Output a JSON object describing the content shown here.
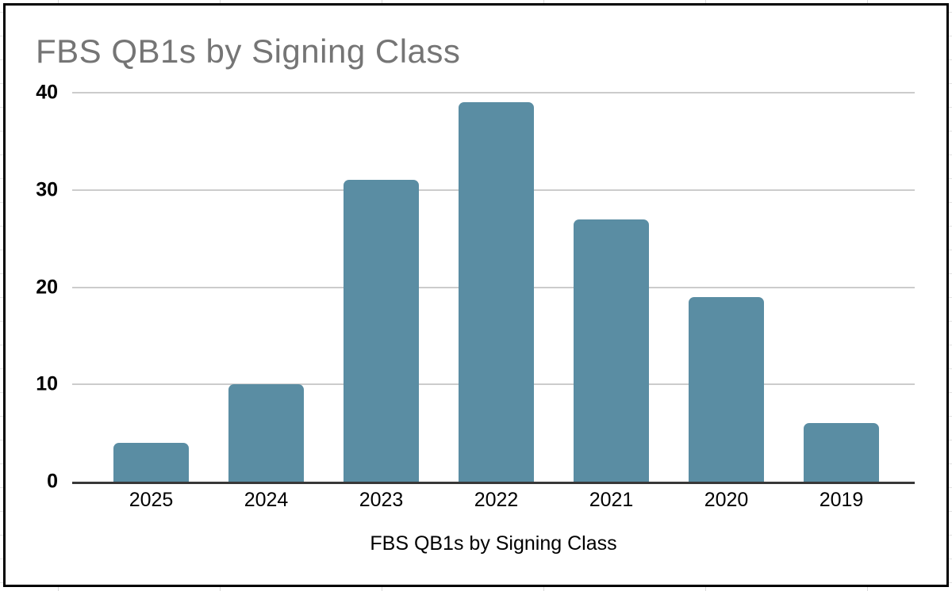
{
  "chart": {
    "title": "FBS QB1s by Signing Class",
    "title_color": "#757575",
    "bar_color": "#5A8DA3",
    "gridline_color": "#cccccc",
    "axis_line_color": "#383838"
  },
  "chart_data": {
    "type": "bar",
    "title": "FBS QB1s by Signing Class",
    "xlabel": "FBS QB1s by Signing Class",
    "ylabel": "",
    "categories": [
      "2025",
      "2024",
      "2023",
      "2022",
      "2021",
      "2020",
      "2019"
    ],
    "values": [
      4,
      10,
      31,
      39,
      27,
      19,
      6
    ],
    "ylim": [
      0,
      40
    ],
    "yticks": [
      0,
      10,
      20,
      30,
      40
    ],
    "grid": true,
    "legend": "none"
  }
}
